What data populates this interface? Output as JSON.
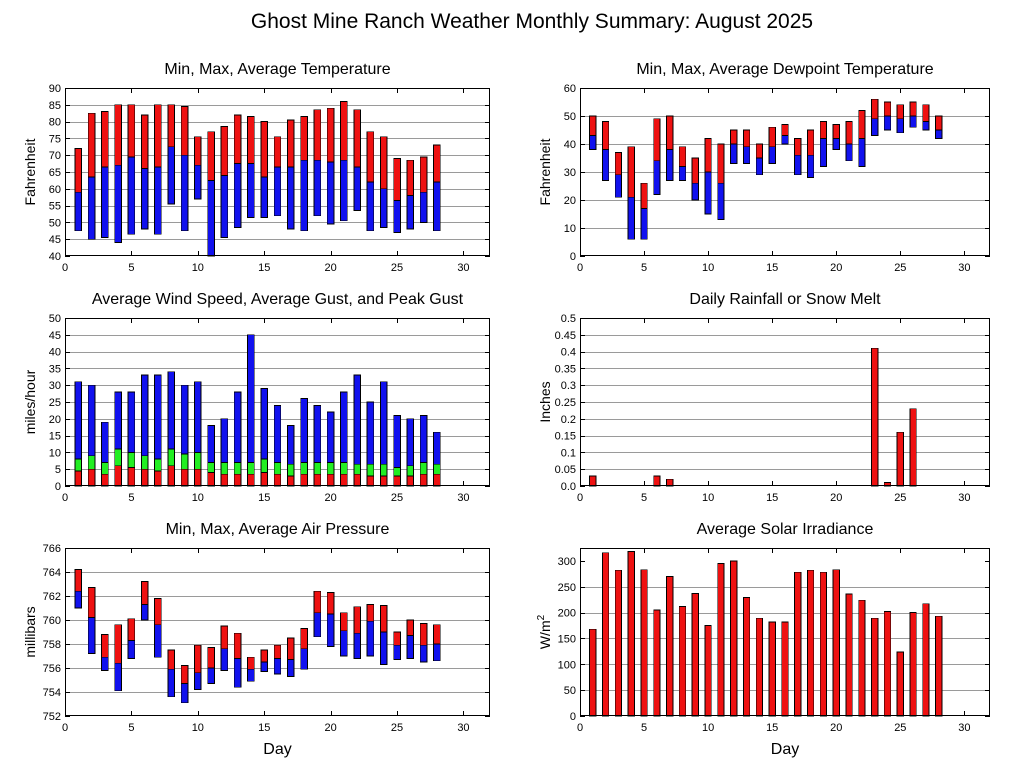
{
  "title": "Ghost Mine Ranch Weather Monthly Summary: August 2025",
  "colors": {
    "red": "#ee1111",
    "blue": "#1111ee",
    "green": "#22ee22"
  },
  "chart_data": [
    {
      "id": "temperature",
      "type": "bar",
      "style": "stacked-range",
      "title": "Min, Max, Average Temperature",
      "xlabel": "",
      "ylabel": "Fahrenheit",
      "xlim": [
        0,
        32
      ],
      "ylim": [
        40,
        90
      ],
      "xticks": [
        0,
        5,
        10,
        15,
        20,
        25,
        30
      ],
      "yticks": [
        40,
        45,
        50,
        55,
        60,
        65,
        70,
        75,
        80,
        85,
        90
      ],
      "x": [
        1,
        2,
        3,
        4,
        5,
        6,
        7,
        8,
        9,
        10,
        11,
        12,
        13,
        14,
        15,
        16,
        17,
        18,
        19,
        20,
        21,
        22,
        23,
        24,
        25,
        26,
        27,
        28
      ],
      "min": [
        47.5,
        45,
        45.5,
        44,
        46.5,
        48,
        46.5,
        55.5,
        47.5,
        57,
        40,
        45.5,
        48.5,
        51.5,
        51.5,
        52,
        48,
        47.5,
        52,
        49.5,
        50.5,
        53.5,
        47.5,
        48.5,
        47,
        48,
        50,
        47.5
      ],
      "avg": [
        59,
        63.5,
        66.5,
        67,
        69.5,
        66,
        66.5,
        72.5,
        70,
        67,
        62.5,
        64,
        67.5,
        67.5,
        63.5,
        66.5,
        66.5,
        68.5,
        68.5,
        68,
        68.5,
        66.5,
        62,
        60,
        56.5,
        58,
        59,
        62
      ],
      "max": [
        72,
        82.5,
        83,
        85,
        85,
        82,
        85,
        85,
        84.5,
        75.5,
        77,
        78.5,
        82,
        81.5,
        80,
        75.5,
        80.5,
        81.5,
        83.5,
        84,
        86,
        83.5,
        77,
        75.5,
        69,
        68.5,
        69.5,
        73
      ]
    },
    {
      "id": "dewpoint",
      "type": "bar",
      "style": "stacked-range",
      "title": "Min, Max, Average Dewpoint Temperature",
      "xlabel": "",
      "ylabel": "Fahrenheit",
      "xlim": [
        0,
        32
      ],
      "ylim": [
        0,
        60
      ],
      "xticks": [
        0,
        5,
        10,
        15,
        20,
        25,
        30
      ],
      "yticks": [
        0,
        10,
        20,
        30,
        40,
        50,
        60
      ],
      "x": [
        1,
        2,
        3,
        4,
        5,
        6,
        7,
        8,
        9,
        10,
        11,
        12,
        13,
        14,
        15,
        16,
        17,
        18,
        19,
        20,
        21,
        22,
        23,
        24,
        25,
        26,
        27,
        28
      ],
      "min": [
        38,
        27,
        21,
        6,
        6,
        22,
        27,
        27,
        20,
        15,
        13,
        33,
        33,
        29,
        33,
        40,
        29,
        28,
        32,
        38,
        34,
        32,
        43,
        45,
        44,
        46,
        45,
        42
      ],
      "avg": [
        43,
        38,
        29,
        21,
        17,
        34,
        38,
        32,
        26,
        30,
        26,
        40,
        39,
        35,
        39,
        43,
        36,
        36,
        42,
        42,
        40,
        42,
        49,
        50,
        49,
        50,
        48,
        45
      ],
      "max": [
        50,
        48,
        37,
        39,
        26,
        49,
        50,
        39,
        35,
        42,
        40,
        45,
        45,
        40,
        46,
        47,
        42,
        45,
        48,
        47,
        48,
        52,
        56,
        55,
        54,
        55,
        54,
        50
      ]
    },
    {
      "id": "wind",
      "type": "bar",
      "style": "stacked-layers",
      "title": "Average Wind Speed, Average Gust, and Peak Gust",
      "xlabel": "",
      "ylabel": "miles/hour",
      "xlim": [
        0,
        32
      ],
      "ylim": [
        0,
        50
      ],
      "xticks": [
        0,
        5,
        10,
        15,
        20,
        25,
        30
      ],
      "yticks": [
        0,
        5,
        10,
        15,
        20,
        25,
        30,
        35,
        40,
        45,
        50
      ],
      "x": [
        1,
        2,
        3,
        4,
        5,
        6,
        7,
        8,
        9,
        10,
        11,
        12,
        13,
        14,
        15,
        16,
        17,
        18,
        19,
        20,
        21,
        22,
        23,
        24,
        25,
        26,
        27,
        28
      ],
      "avg_speed": [
        4.5,
        5,
        3.5,
        6,
        5.5,
        5,
        4.5,
        6,
        5,
        5,
        4,
        3.5,
        3.5,
        3.5,
        4,
        3.5,
        3,
        3.5,
        3.5,
        3.5,
        3.5,
        3.5,
        3,
        3,
        3,
        3,
        3.5,
        3.5
      ],
      "avg_gust": [
        8,
        9,
        7,
        11,
        10,
        9,
        8,
        11,
        9.5,
        10,
        7,
        7,
        7,
        7,
        8,
        7,
        6.5,
        7,
        7,
        7,
        7,
        6.5,
        6.5,
        6.5,
        5.5,
        6,
        7,
        6.5
      ],
      "peak_gust": [
        31,
        30,
        19,
        28,
        28,
        33,
        33,
        34,
        30,
        31,
        18,
        20,
        28,
        45,
        29,
        24,
        18,
        26,
        24,
        22,
        28,
        33,
        25,
        31,
        21,
        20,
        21,
        16
      ]
    },
    {
      "id": "rain",
      "type": "bar",
      "title": "Daily Rainfall or Snow Melt",
      "xlabel": "",
      "ylabel": "Inches",
      "xlim": [
        0,
        32
      ],
      "ylim": [
        0,
        0.5
      ],
      "xticks": [
        0,
        5,
        10,
        15,
        20,
        25,
        30
      ],
      "yticks": [
        0,
        0.05,
        0.1,
        0.15,
        0.2,
        0.25,
        0.3,
        0.35,
        0.4,
        0.45,
        0.5
      ],
      "ytick_labels": [
        "0.0",
        "0.05",
        "0.1",
        "0.15",
        "0.2",
        "0.25",
        "0.3",
        "0.35",
        "0.4",
        "0.45",
        "0.5"
      ],
      "x": [
        1,
        6,
        7,
        23,
        24,
        25,
        26
      ],
      "values": [
        0.03,
        0.03,
        0.02,
        0.41,
        0.01,
        0.16,
        0.23
      ]
    },
    {
      "id": "pressure",
      "type": "bar",
      "style": "stacked-range",
      "title": "Min, Max, Average Air Pressure",
      "xlabel": "Day",
      "ylabel": "millibars",
      "xlim": [
        0,
        32
      ],
      "ylim": [
        752,
        766
      ],
      "xticks": [
        0,
        5,
        10,
        15,
        20,
        25,
        30
      ],
      "yticks": [
        752,
        754,
        756,
        758,
        760,
        762,
        764,
        766
      ],
      "x": [
        1,
        2,
        3,
        4,
        5,
        6,
        7,
        8,
        9,
        10,
        11,
        12,
        13,
        14,
        15,
        16,
        17,
        18,
        19,
        20,
        21,
        22,
        23,
        24,
        25,
        26,
        27,
        28
      ],
      "min": [
        761,
        757.2,
        755.8,
        754.1,
        756.8,
        760,
        756.9,
        753.6,
        753.1,
        754.2,
        754.7,
        755.8,
        754.4,
        754.9,
        755.7,
        755.5,
        755.3,
        755.9,
        758.6,
        757.8,
        757,
        756.8,
        757,
        756.3,
        756.7,
        756.8,
        756.5,
        756.6
      ],
      "avg": [
        762.4,
        760.2,
        756.9,
        756.4,
        758.3,
        761.3,
        759.6,
        755.9,
        754.7,
        755.6,
        756,
        757.6,
        756.8,
        755.9,
        756.5,
        756.8,
        756.7,
        757.6,
        760.6,
        760.5,
        759.1,
        758.9,
        759.9,
        759,
        757.9,
        758.7,
        757.9,
        758
      ],
      "max": [
        764.2,
        762.7,
        758.8,
        759.6,
        760.1,
        763.2,
        761.8,
        757.5,
        756.2,
        757.9,
        757.7,
        759.5,
        758.9,
        756.9,
        757.5,
        757.9,
        758.5,
        759.3,
        762.4,
        762.3,
        760.6,
        761.1,
        761.3,
        761.2,
        759,
        760,
        759.7,
        759.6
      ]
    },
    {
      "id": "solar",
      "type": "bar",
      "title": "Average Solar Irradiance",
      "xlabel": "Day",
      "ylabel": "W/m",
      "ylabel_sup": "2",
      "xlim": [
        0,
        32
      ],
      "ylim": [
        0,
        325
      ],
      "xticks": [
        0,
        5,
        10,
        15,
        20,
        25,
        30
      ],
      "yticks": [
        0,
        50,
        100,
        150,
        200,
        250,
        300
      ],
      "x": [
        1,
        2,
        3,
        4,
        5,
        6,
        7,
        8,
        9,
        10,
        11,
        12,
        13,
        14,
        15,
        16,
        17,
        18,
        19,
        20,
        21,
        22,
        23,
        24,
        25,
        26,
        27,
        28
      ],
      "values": [
        168,
        316,
        282,
        318,
        283,
        205,
        270,
        212,
        237,
        175,
        295,
        300,
        229,
        189,
        182,
        182,
        278,
        282,
        278,
        283,
        236,
        224,
        189,
        202,
        124,
        200,
        217,
        193
      ]
    }
  ]
}
